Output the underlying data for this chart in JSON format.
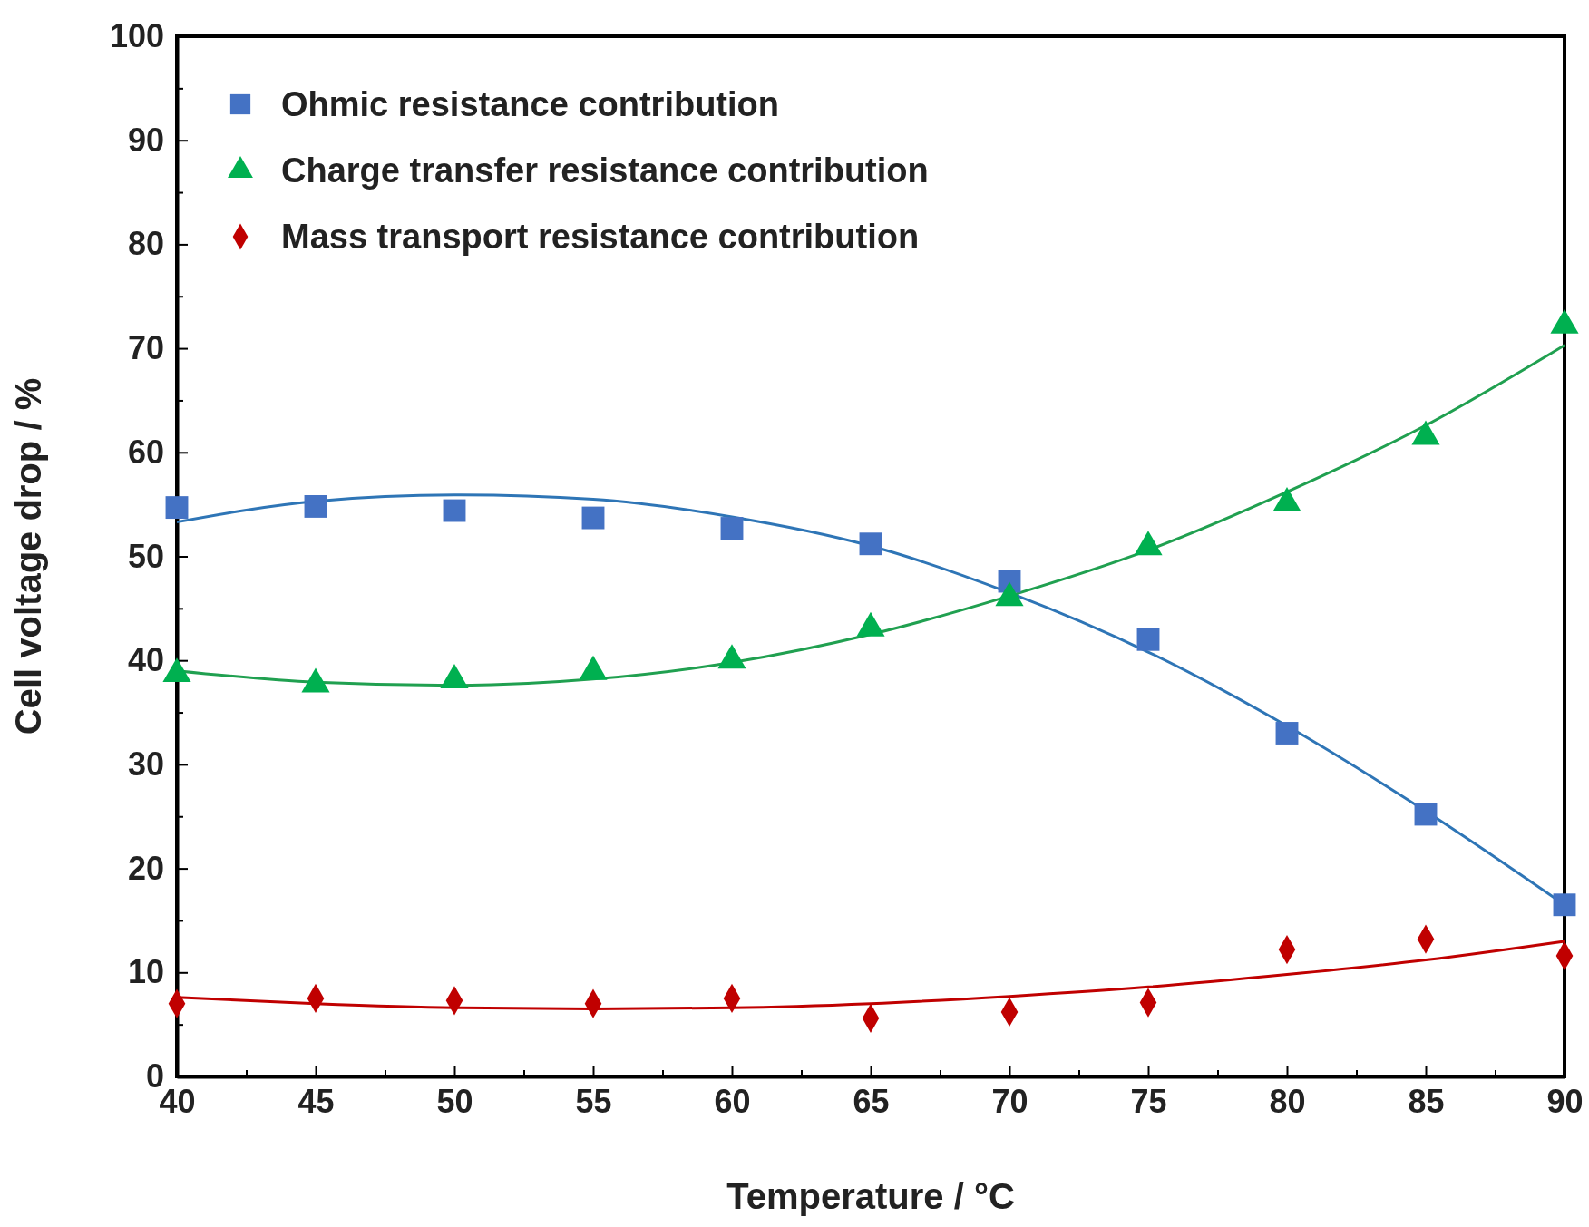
{
  "chart_data": {
    "type": "scatter",
    "xlabel": "Temperature / °C",
    "ylabel": "Cell voltage drop / %",
    "x": [
      40,
      45,
      50,
      55,
      60,
      65,
      70,
      75,
      80,
      85,
      90
    ],
    "series": [
      {
        "name": "Ohmic resistance contribution",
        "color": "#4472c4",
        "marker": "square",
        "values": [
          54.7,
          54.8,
          54.4,
          53.7,
          52.7,
          51.2,
          47.6,
          42.0,
          33.0,
          25.2,
          16.5
        ]
      },
      {
        "name": "Charge transfer resistance contribution",
        "color": "#00b050",
        "marker": "triangle",
        "values": [
          38.7,
          37.7,
          38.1,
          38.9,
          40.0,
          43.1,
          46.0,
          50.9,
          55.1,
          61.5,
          72.2
        ]
      },
      {
        "name": "Mass transport resistance contribution",
        "color": "#c00000",
        "marker": "diamond",
        "values": [
          7.0,
          7.5,
          7.3,
          7.0,
          7.5,
          5.6,
          6.2,
          7.1,
          12.2,
          13.2,
          11.6
        ]
      },
      {
        "type": "line",
        "color": "#2e75b6",
        "x": [
          40,
          45,
          50,
          55,
          60,
          65,
          70,
          75,
          80,
          85,
          90
        ],
        "values": [
          53.3,
          55.3,
          55.9,
          55.5,
          53.8,
          51.0,
          46.5,
          40.8,
          33.7,
          25.5,
          16.5
        ]
      },
      {
        "type": "line",
        "color": "#20a050",
        "x": [
          40,
          45,
          50,
          55,
          60,
          65,
          70,
          75,
          80,
          85,
          90
        ],
        "values": [
          39.0,
          37.9,
          37.6,
          38.2,
          39.8,
          42.5,
          46.2,
          50.6,
          56.2,
          62.6,
          70.3
        ]
      },
      {
        "type": "line",
        "color": "#c00000",
        "x": [
          40,
          45,
          50,
          55,
          60,
          65,
          70,
          75,
          80,
          85,
          90
        ],
        "values": [
          7.6,
          7.0,
          6.6,
          6.5,
          6.6,
          7.0,
          7.7,
          8.6,
          9.8,
          11.2,
          13.0
        ]
      }
    ],
    "xlim": [
      40,
      90
    ],
    "ylim": [
      0,
      100
    ],
    "xticks": [
      40,
      {
        "value": 42.5,
        "label": null
      },
      45,
      {
        "value": 47.5,
        "label": null
      },
      50,
      {
        "value": 52.5,
        "label": null
      },
      55,
      {
        "value": 57.5,
        "label": null
      },
      60,
      {
        "value": 62.5,
        "label": null
      },
      65,
      {
        "value": 67.5,
        "label": null
      },
      70,
      {
        "value": 72.5,
        "label": null
      },
      75,
      {
        "value": 77.5,
        "label": null
      },
      80,
      {
        "value": 82.5,
        "label": null
      },
      85,
      {
        "value": 87.5,
        "label": null
      },
      90
    ],
    "yticks": [
      0,
      {
        "value": 5,
        "label": null
      },
      10,
      {
        "value": 15,
        "label": null
      },
      20,
      {
        "value": 25,
        "label": null
      },
      30,
      {
        "value": 35,
        "label": null
      },
      40,
      {
        "value": 45,
        "label": null
      },
      50,
      {
        "value": 55,
        "label": null
      },
      60,
      {
        "value": 65,
        "label": null
      },
      70,
      {
        "value": 75,
        "label": null
      },
      80,
      {
        "value": 85,
        "label": null
      },
      90,
      {
        "value": 95,
        "label": null
      },
      100
    ],
    "grid": false,
    "legend": "top left"
  }
}
